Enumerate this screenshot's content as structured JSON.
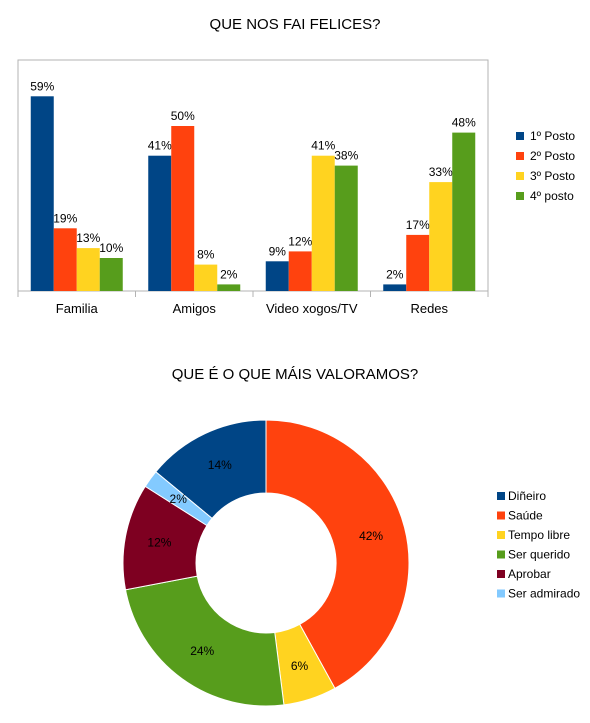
{
  "chart_data": [
    {
      "type": "bar",
      "title": "QUE NOS FAI FELICES?",
      "categories": [
        "Familia",
        "Amigos",
        "Video xogos/TV",
        "Redes"
      ],
      "series": [
        {
          "name": "1º Posto",
          "values": [
            59,
            41,
            9,
            2
          ],
          "labels": [
            "59%",
            "41%",
            "9%",
            "2%"
          ]
        },
        {
          "name": "2º Posto",
          "values": [
            19,
            50,
            12,
            17
          ],
          "labels": [
            "19%",
            "50%",
            "12%",
            "17%"
          ]
        },
        {
          "name": "3º Posto",
          "values": [
            13,
            8,
            41,
            33
          ],
          "labels": [
            "13%",
            "8%",
            "41%",
            "33%"
          ]
        },
        {
          "name": "4º posto",
          "values": [
            10,
            2,
            38,
            48
          ],
          "labels": [
            "10%",
            "2%",
            "38%",
            "48%"
          ]
        }
      ],
      "colors": [
        "#004586",
        "#ff420e",
        "#ffd320",
        "#579d1c"
      ],
      "ylim": [
        0,
        70
      ],
      "legend": "right",
      "grid": false
    },
    {
      "type": "pie",
      "title": "QUE É O QUE MÁIS VALORAMOS?",
      "donut": true,
      "categories": [
        "Diñeiro",
        "Saúde",
        "Tempo libre",
        "Ser querido",
        "Aprobar",
        "Ser admirado"
      ],
      "values": [
        14,
        42,
        6,
        24,
        12,
        2
      ],
      "labels": [
        "14%",
        "42%",
        "6%",
        "24%",
        "12%",
        "2%"
      ],
      "colors": [
        "#004586",
        "#ff420e",
        "#ffd320",
        "#579d1c",
        "#7e0021",
        "#83caff"
      ],
      "legend": "right"
    }
  ]
}
